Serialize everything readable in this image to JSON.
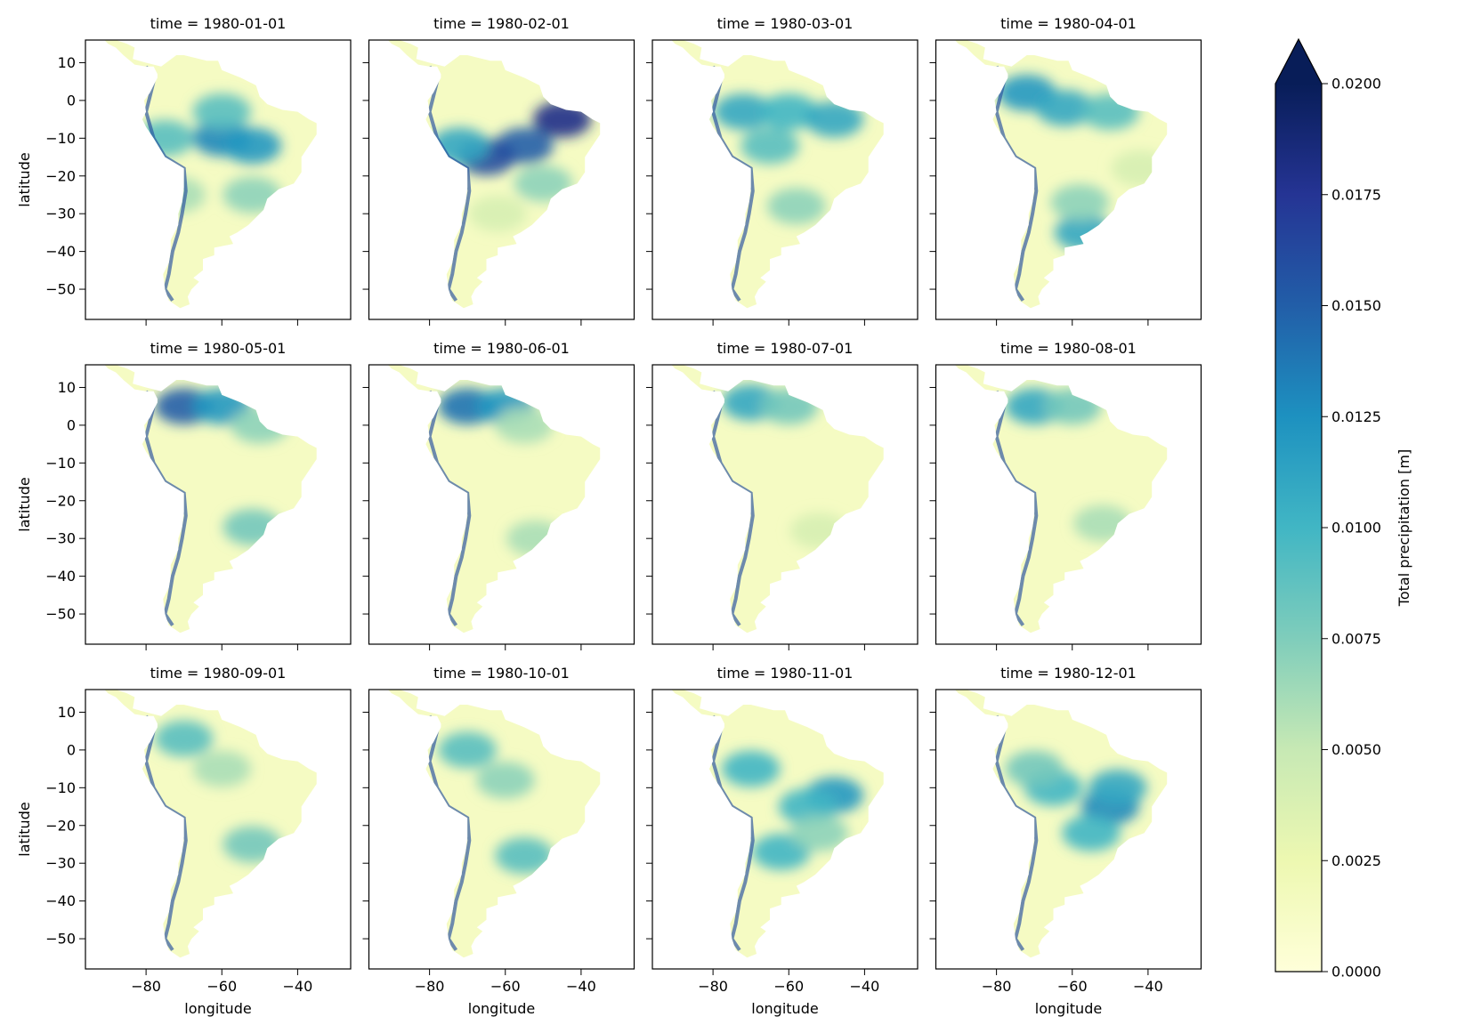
{
  "chart_data": {
    "type": "heatmap",
    "layout": {
      "rows": 3,
      "cols": 4,
      "sharex": true,
      "sharey": true
    },
    "x": {
      "label": "longitude",
      "ticks": [
        -80,
        -60,
        -40
      ],
      "range": [
        -96,
        -26
      ]
    },
    "y": {
      "label": "latitude",
      "ticks": [
        10,
        0,
        -10,
        -20,
        -30,
        -40,
        -50
      ],
      "range": [
        -58,
        16
      ]
    },
    "colorbar": {
      "label": "Total precipitation [m]",
      "min": 0.0,
      "max": 0.02,
      "extend": "max",
      "cmap": "YlGnBu",
      "ticks": [
        "0.0000",
        "0.0025",
        "0.0050",
        "0.0075",
        "0.0100",
        "0.0125",
        "0.0150",
        "0.0175",
        "0.0200"
      ]
    },
    "panels": [
      {
        "title": "time = 1980-01-01",
        "hotspots": [
          [
            -75,
            -10,
            0.45
          ],
          [
            -60,
            -10,
            0.65
          ],
          [
            -52,
            -12,
            0.6
          ],
          [
            -60,
            -3,
            0.45
          ],
          [
            -72,
            -25,
            0.3
          ],
          [
            -52,
            -25,
            0.35
          ]
        ]
      },
      {
        "title": "time = 1980-02-01",
        "hotspots": [
          [
            -45,
            -5,
            0.9
          ],
          [
            -55,
            -12,
            0.75
          ],
          [
            -65,
            -15,
            0.8
          ],
          [
            -72,
            -12,
            0.55
          ],
          [
            -50,
            -22,
            0.35
          ],
          [
            -62,
            -30,
            0.2
          ]
        ]
      },
      {
        "title": "time = 1980-03-01",
        "hotspots": [
          [
            -72,
            -3,
            0.55
          ],
          [
            -60,
            -3,
            0.5
          ],
          [
            -48,
            -5,
            0.55
          ],
          [
            -65,
            -12,
            0.45
          ],
          [
            -58,
            -28,
            0.35
          ]
        ]
      },
      {
        "title": "time = 1980-04-01",
        "hotspots": [
          [
            -72,
            2,
            0.6
          ],
          [
            -62,
            -2,
            0.55
          ],
          [
            -50,
            -3,
            0.45
          ],
          [
            -57,
            -35,
            0.55
          ],
          [
            -58,
            -27,
            0.35
          ],
          [
            -42,
            -18,
            0.2
          ]
        ]
      },
      {
        "title": "time = 1980-05-01",
        "hotspots": [
          [
            -70,
            5,
            0.75
          ],
          [
            -60,
            5,
            0.6
          ],
          [
            -50,
            0,
            0.35
          ],
          [
            -52,
            -27,
            0.4
          ]
        ]
      },
      {
        "title": "time = 1980-06-01",
        "hotspots": [
          [
            -70,
            5,
            0.7
          ],
          [
            -60,
            5,
            0.6
          ],
          [
            -55,
            0,
            0.3
          ],
          [
            -52,
            -30,
            0.3
          ]
        ]
      },
      {
        "title": "time = 1980-07-01",
        "hotspots": [
          [
            -70,
            6,
            0.55
          ],
          [
            -60,
            5,
            0.4
          ],
          [
            -52,
            -28,
            0.2
          ]
        ]
      },
      {
        "title": "time = 1980-08-01",
        "hotspots": [
          [
            -70,
            5,
            0.55
          ],
          [
            -60,
            5,
            0.4
          ],
          [
            -52,
            -26,
            0.3
          ]
        ]
      },
      {
        "title": "time = 1980-09-01",
        "hotspots": [
          [
            -70,
            3,
            0.45
          ],
          [
            -60,
            -5,
            0.3
          ],
          [
            -52,
            -25,
            0.4
          ]
        ]
      },
      {
        "title": "time = 1980-10-01",
        "hotspots": [
          [
            -70,
            0,
            0.45
          ],
          [
            -60,
            -8,
            0.35
          ],
          [
            -55,
            -28,
            0.45
          ]
        ]
      },
      {
        "title": "time = 1980-11-01",
        "hotspots": [
          [
            -70,
            -5,
            0.5
          ],
          [
            -48,
            -12,
            0.6
          ],
          [
            -55,
            -15,
            0.5
          ],
          [
            -62,
            -27,
            0.5
          ],
          [
            -52,
            -22,
            0.35
          ]
        ]
      },
      {
        "title": "time = 1980-12-01",
        "hotspots": [
          [
            -65,
            -10,
            0.5
          ],
          [
            -50,
            -15,
            0.65
          ],
          [
            -48,
            -10,
            0.55
          ],
          [
            -55,
            -22,
            0.5
          ],
          [
            -70,
            -5,
            0.4
          ]
        ]
      }
    ]
  }
}
